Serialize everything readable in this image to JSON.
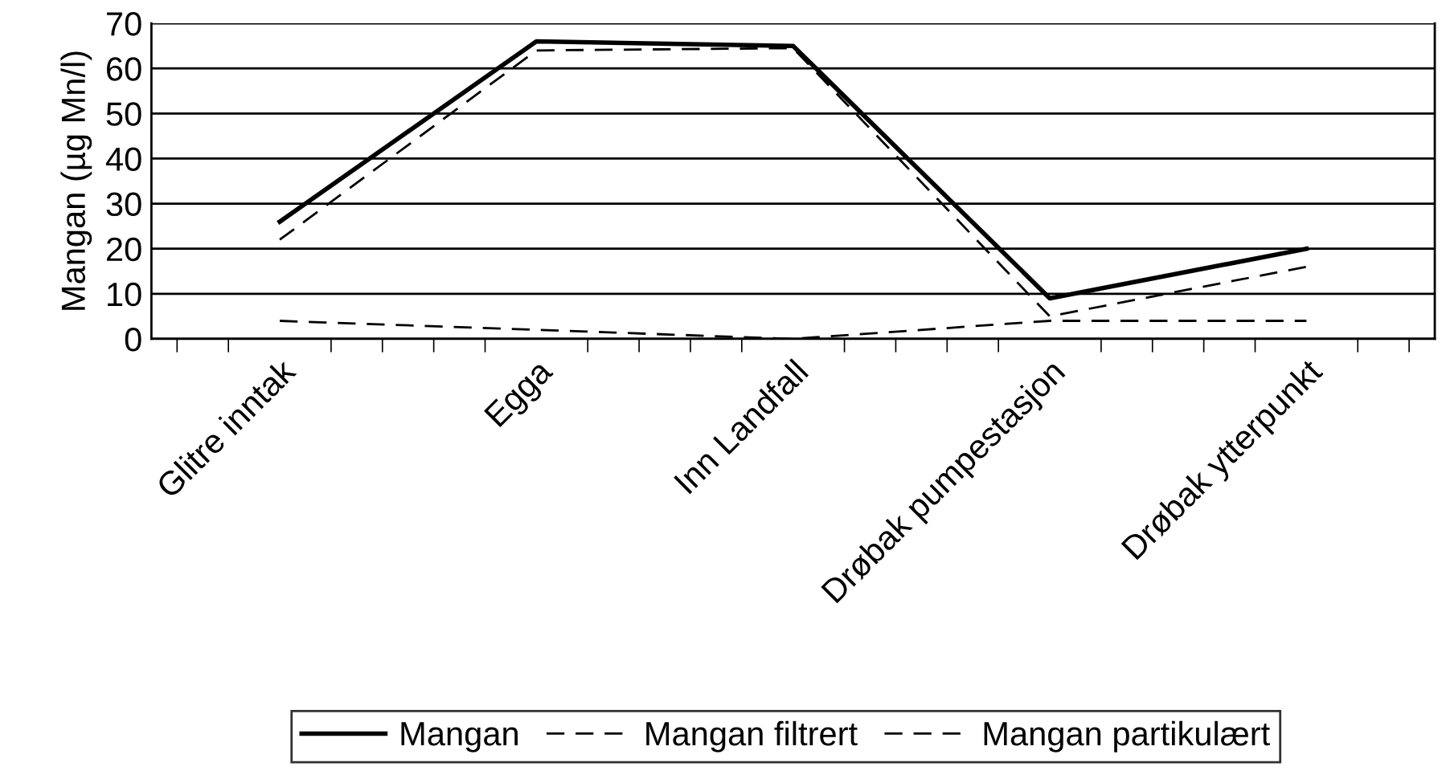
{
  "chart_data": {
    "type": "line",
    "ylabel": "Mangan (µg Mn/l)",
    "categories": [
      "Glitre inntak",
      "Egga",
      "Inn Landfall",
      "Drøbak pumpestasjon",
      "Drøbak ytterpunkt"
    ],
    "series": [
      {
        "name": "Mangan",
        "color": "#000000",
        "line_style": "solid",
        "values": [
          26,
          66,
          65,
          9,
          20
        ]
      },
      {
        "name": "Mangan filtrert",
        "color": "#000000",
        "line_style": "dashed",
        "values": [
          22,
          64,
          64.5,
          5,
          16
        ]
      },
      {
        "name": "Mangan partikulært",
        "color": "#000000",
        "line_style": "dashed",
        "values": [
          4,
          2,
          0,
          4,
          4
        ]
      }
    ],
    "ylim": [
      0,
      70
    ],
    "yticks": [
      0,
      10,
      20,
      30,
      40,
      50,
      60,
      70
    ],
    "grid": "y",
    "legend": "bottom",
    "marker": "none"
  }
}
